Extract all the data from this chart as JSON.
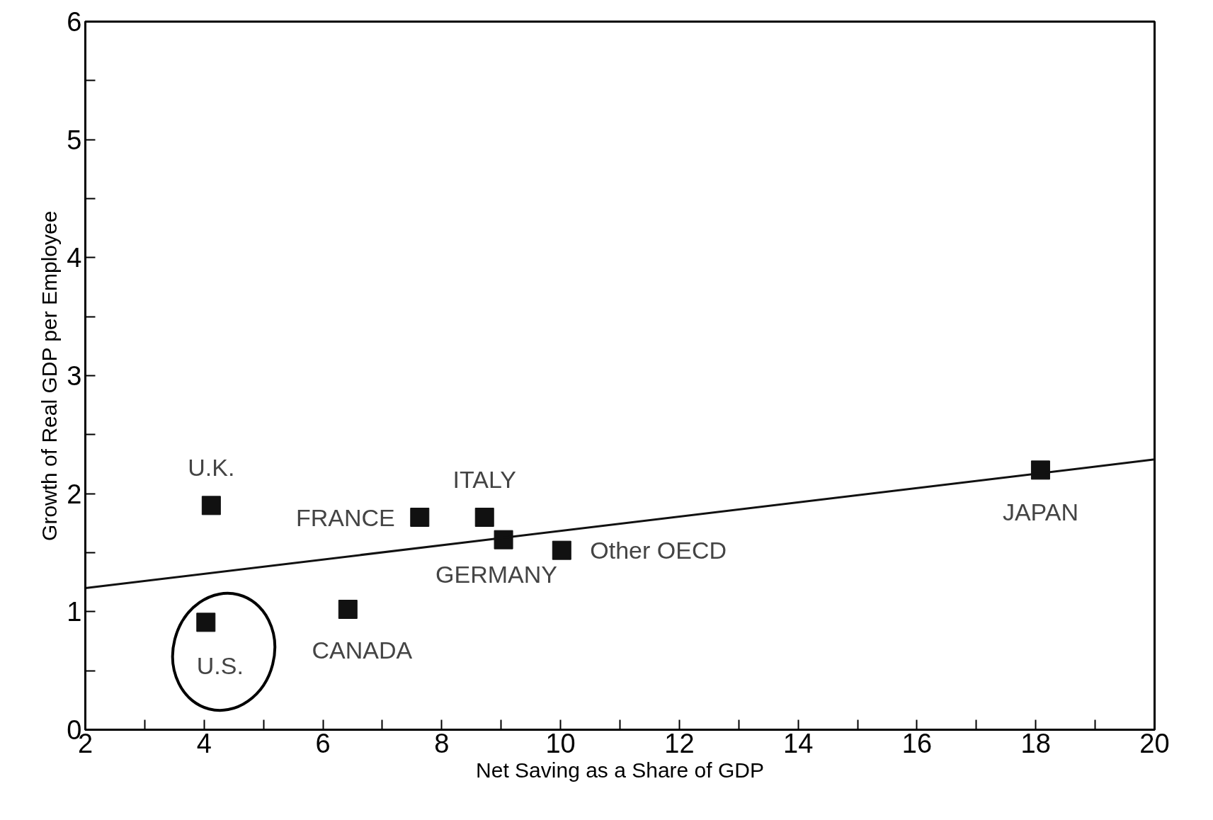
{
  "chart_data": {
    "type": "scatter",
    "xlabel": "Net Saving as a Share of GDP",
    "ylabel": "Growth of Real GDP per Employee",
    "x": [
      4.12,
      7.63,
      8.72,
      9.04,
      10.02,
      18.08,
      6.42,
      4.03
    ],
    "series": [
      {
        "color": "#111111",
        "marker": "square",
        "values": [
          1.9,
          1.8,
          1.8,
          1.61,
          1.52,
          2.2,
          1.02,
          0.91
        ]
      },
      {
        "type": "line",
        "color": "#111111",
        "x": [
          2,
          20
        ],
        "values": [
          1.2,
          2.29
        ]
      }
    ],
    "annotations": [
      {
        "text": "U.K.",
        "x": 4.12,
        "y": 1.9
      },
      {
        "text": "FRANCE",
        "x": 7.63,
        "y": 1.8
      },
      {
        "text": "ITALY",
        "x": 8.72,
        "y": 1.8
      },
      {
        "text": "GERMANY",
        "x": 9.04,
        "y": 1.61
      },
      {
        "text": "Other OECD",
        "x": 10.02,
        "y": 1.52
      },
      {
        "text": "JAPAN",
        "x": 18.08,
        "y": 2.2
      },
      {
        "text": "CANADA",
        "x": 6.42,
        "y": 1.02
      },
      {
        "text": "U.S.",
        "x": 4.03,
        "y": 0.91
      }
    ],
    "grid": false,
    "xlim": [
      2,
      20
    ],
    "ylim": [
      0,
      6
    ],
    "xticks": [
      2,
      {
        "value": 3,
        "label": null
      },
      4,
      {
        "value": 5,
        "label": null
      },
      6,
      {
        "value": 7,
        "label": null
      },
      8,
      {
        "value": 9,
        "label": null
      },
      10,
      {
        "value": 11,
        "label": null
      },
      12,
      {
        "value": 13,
        "label": null
      },
      14,
      {
        "value": 15,
        "label": null
      },
      16,
      {
        "value": 17,
        "label": null
      },
      18,
      {
        "value": 19,
        "label": null
      },
      20
    ],
    "yticks": [
      0,
      {
        "value": 0.5,
        "label": null
      },
      1,
      {
        "value": 1.5,
        "label": null
      },
      2,
      {
        "value": 2.5,
        "label": null
      },
      3,
      {
        "value": 3.5,
        "label": null
      },
      4,
      {
        "value": 4.5,
        "label": null
      },
      5,
      {
        "value": 5.5,
        "label": null
      },
      6
    ]
  }
}
